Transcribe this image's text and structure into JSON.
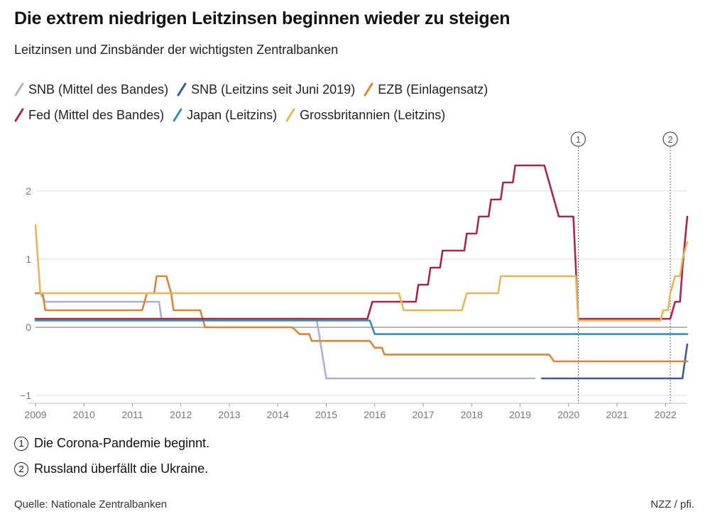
{
  "title": "Die extrem niedrigen Leitzinsen beginnen wieder zu steigen",
  "subtitle": "Leitzinsen und Zinsbänder der wichtigsten Zentralbanken",
  "source": "Quelle: Nationale Zentralbanken",
  "credit": "NZZ / pfi.",
  "notes": [
    {
      "num": "1",
      "text": "Die Corona-Pandemie beginnt."
    },
    {
      "num": "2",
      "text": "Russland überfällt die Ukraine."
    }
  ],
  "chart_data": {
    "type": "line",
    "xlabel": "",
    "ylabel": "",
    "xlim": [
      2009.0,
      2022.45
    ],
    "ylim": [
      -1,
      2.4
    ],
    "yticks": [
      -1,
      0,
      1,
      2
    ],
    "xticks": [
      2009,
      2010,
      2011,
      2012,
      2013,
      2014,
      2015,
      2016,
      2017,
      2018,
      2019,
      2020,
      2021,
      2022
    ],
    "grid": true,
    "legend_position": "top",
    "annotations": [
      {
        "label": "1",
        "x": 2020.2
      },
      {
        "label": "2",
        "x": 2022.1
      }
    ],
    "series": [
      {
        "name": "SNB (Mittel des Bandes)",
        "color": "#a8b4cc",
        "points": [
          [
            2009.0,
            0.5
          ],
          [
            2009.1,
            0.5
          ],
          [
            2009.2,
            0.375
          ],
          [
            2011.55,
            0.375
          ],
          [
            2011.6,
            0.125
          ],
          [
            2014.8,
            0.125
          ],
          [
            2015.0,
            -0.75
          ],
          [
            2019.3,
            -0.75
          ]
        ]
      },
      {
        "name": "SNB (Leitzins seit Juni 2019)",
        "color": "#3d5a99",
        "points": [
          [
            2019.45,
            -0.75
          ],
          [
            2022.35,
            -0.75
          ],
          [
            2022.45,
            -0.25
          ]
        ]
      },
      {
        "name": "EZB (Einlagensatz)",
        "color": "#d9853b",
        "points": [
          [
            2009.0,
            0.5
          ],
          [
            2009.15,
            0.5
          ],
          [
            2009.2,
            0.25
          ],
          [
            2011.2,
            0.25
          ],
          [
            2011.3,
            0.5
          ],
          [
            2011.45,
            0.5
          ],
          [
            2011.5,
            0.75
          ],
          [
            2011.7,
            0.75
          ],
          [
            2011.8,
            0.5
          ],
          [
            2011.85,
            0.25
          ],
          [
            2012.4,
            0.25
          ],
          [
            2012.5,
            0.0
          ],
          [
            2014.3,
            0.0
          ],
          [
            2014.45,
            -0.1
          ],
          [
            2014.65,
            -0.1
          ],
          [
            2014.7,
            -0.2
          ],
          [
            2015.9,
            -0.2
          ],
          [
            2016.0,
            -0.3
          ],
          [
            2016.15,
            -0.3
          ],
          [
            2016.2,
            -0.4
          ],
          [
            2019.6,
            -0.4
          ],
          [
            2019.7,
            -0.5
          ],
          [
            2022.45,
            -0.5
          ]
        ]
      },
      {
        "name": "Fed (Mittel des Bandes)",
        "color": "#a3284f",
        "points": [
          [
            2009.0,
            0.125
          ],
          [
            2015.85,
            0.125
          ],
          [
            2015.95,
            0.375
          ],
          [
            2016.85,
            0.375
          ],
          [
            2016.9,
            0.625
          ],
          [
            2017.1,
            0.625
          ],
          [
            2017.15,
            0.875
          ],
          [
            2017.35,
            0.875
          ],
          [
            2017.4,
            1.125
          ],
          [
            2017.85,
            1.125
          ],
          [
            2017.9,
            1.375
          ],
          [
            2018.1,
            1.375
          ],
          [
            2018.15,
            1.625
          ],
          [
            2018.35,
            1.625
          ],
          [
            2018.4,
            1.875
          ],
          [
            2018.6,
            1.875
          ],
          [
            2018.65,
            2.125
          ],
          [
            2018.85,
            2.125
          ],
          [
            2018.9,
            2.375
          ],
          [
            2019.5,
            2.375
          ],
          [
            2019.6,
            2.125
          ],
          [
            2019.7,
            1.875
          ],
          [
            2019.8,
            1.625
          ],
          [
            2020.1,
            1.625
          ],
          [
            2020.2,
            0.125
          ],
          [
            2022.1,
            0.125
          ],
          [
            2022.2,
            0.375
          ],
          [
            2022.3,
            0.375
          ],
          [
            2022.35,
            0.875
          ],
          [
            2022.45,
            1.625
          ]
        ]
      },
      {
        "name": "Japan (Leitzins)",
        "color": "#3a8fb0",
        "points": [
          [
            2009.0,
            0.1
          ],
          [
            2015.9,
            0.1
          ],
          [
            2016.0,
            -0.1
          ],
          [
            2022.45,
            -0.1
          ]
        ]
      },
      {
        "name": "Grossbritannien (Leitzins)",
        "color": "#e3b75a",
        "points": [
          [
            2009.0,
            1.5
          ],
          [
            2009.1,
            0.5
          ],
          [
            2016.5,
            0.5
          ],
          [
            2016.6,
            0.25
          ],
          [
            2017.8,
            0.25
          ],
          [
            2017.9,
            0.5
          ],
          [
            2018.55,
            0.5
          ],
          [
            2018.6,
            0.75
          ],
          [
            2020.15,
            0.75
          ],
          [
            2020.2,
            0.1
          ],
          [
            2021.9,
            0.1
          ],
          [
            2021.95,
            0.25
          ],
          [
            2022.05,
            0.25
          ],
          [
            2022.1,
            0.5
          ],
          [
            2022.2,
            0.75
          ],
          [
            2022.3,
            0.75
          ],
          [
            2022.35,
            1.0
          ],
          [
            2022.45,
            1.25
          ]
        ]
      }
    ]
  }
}
